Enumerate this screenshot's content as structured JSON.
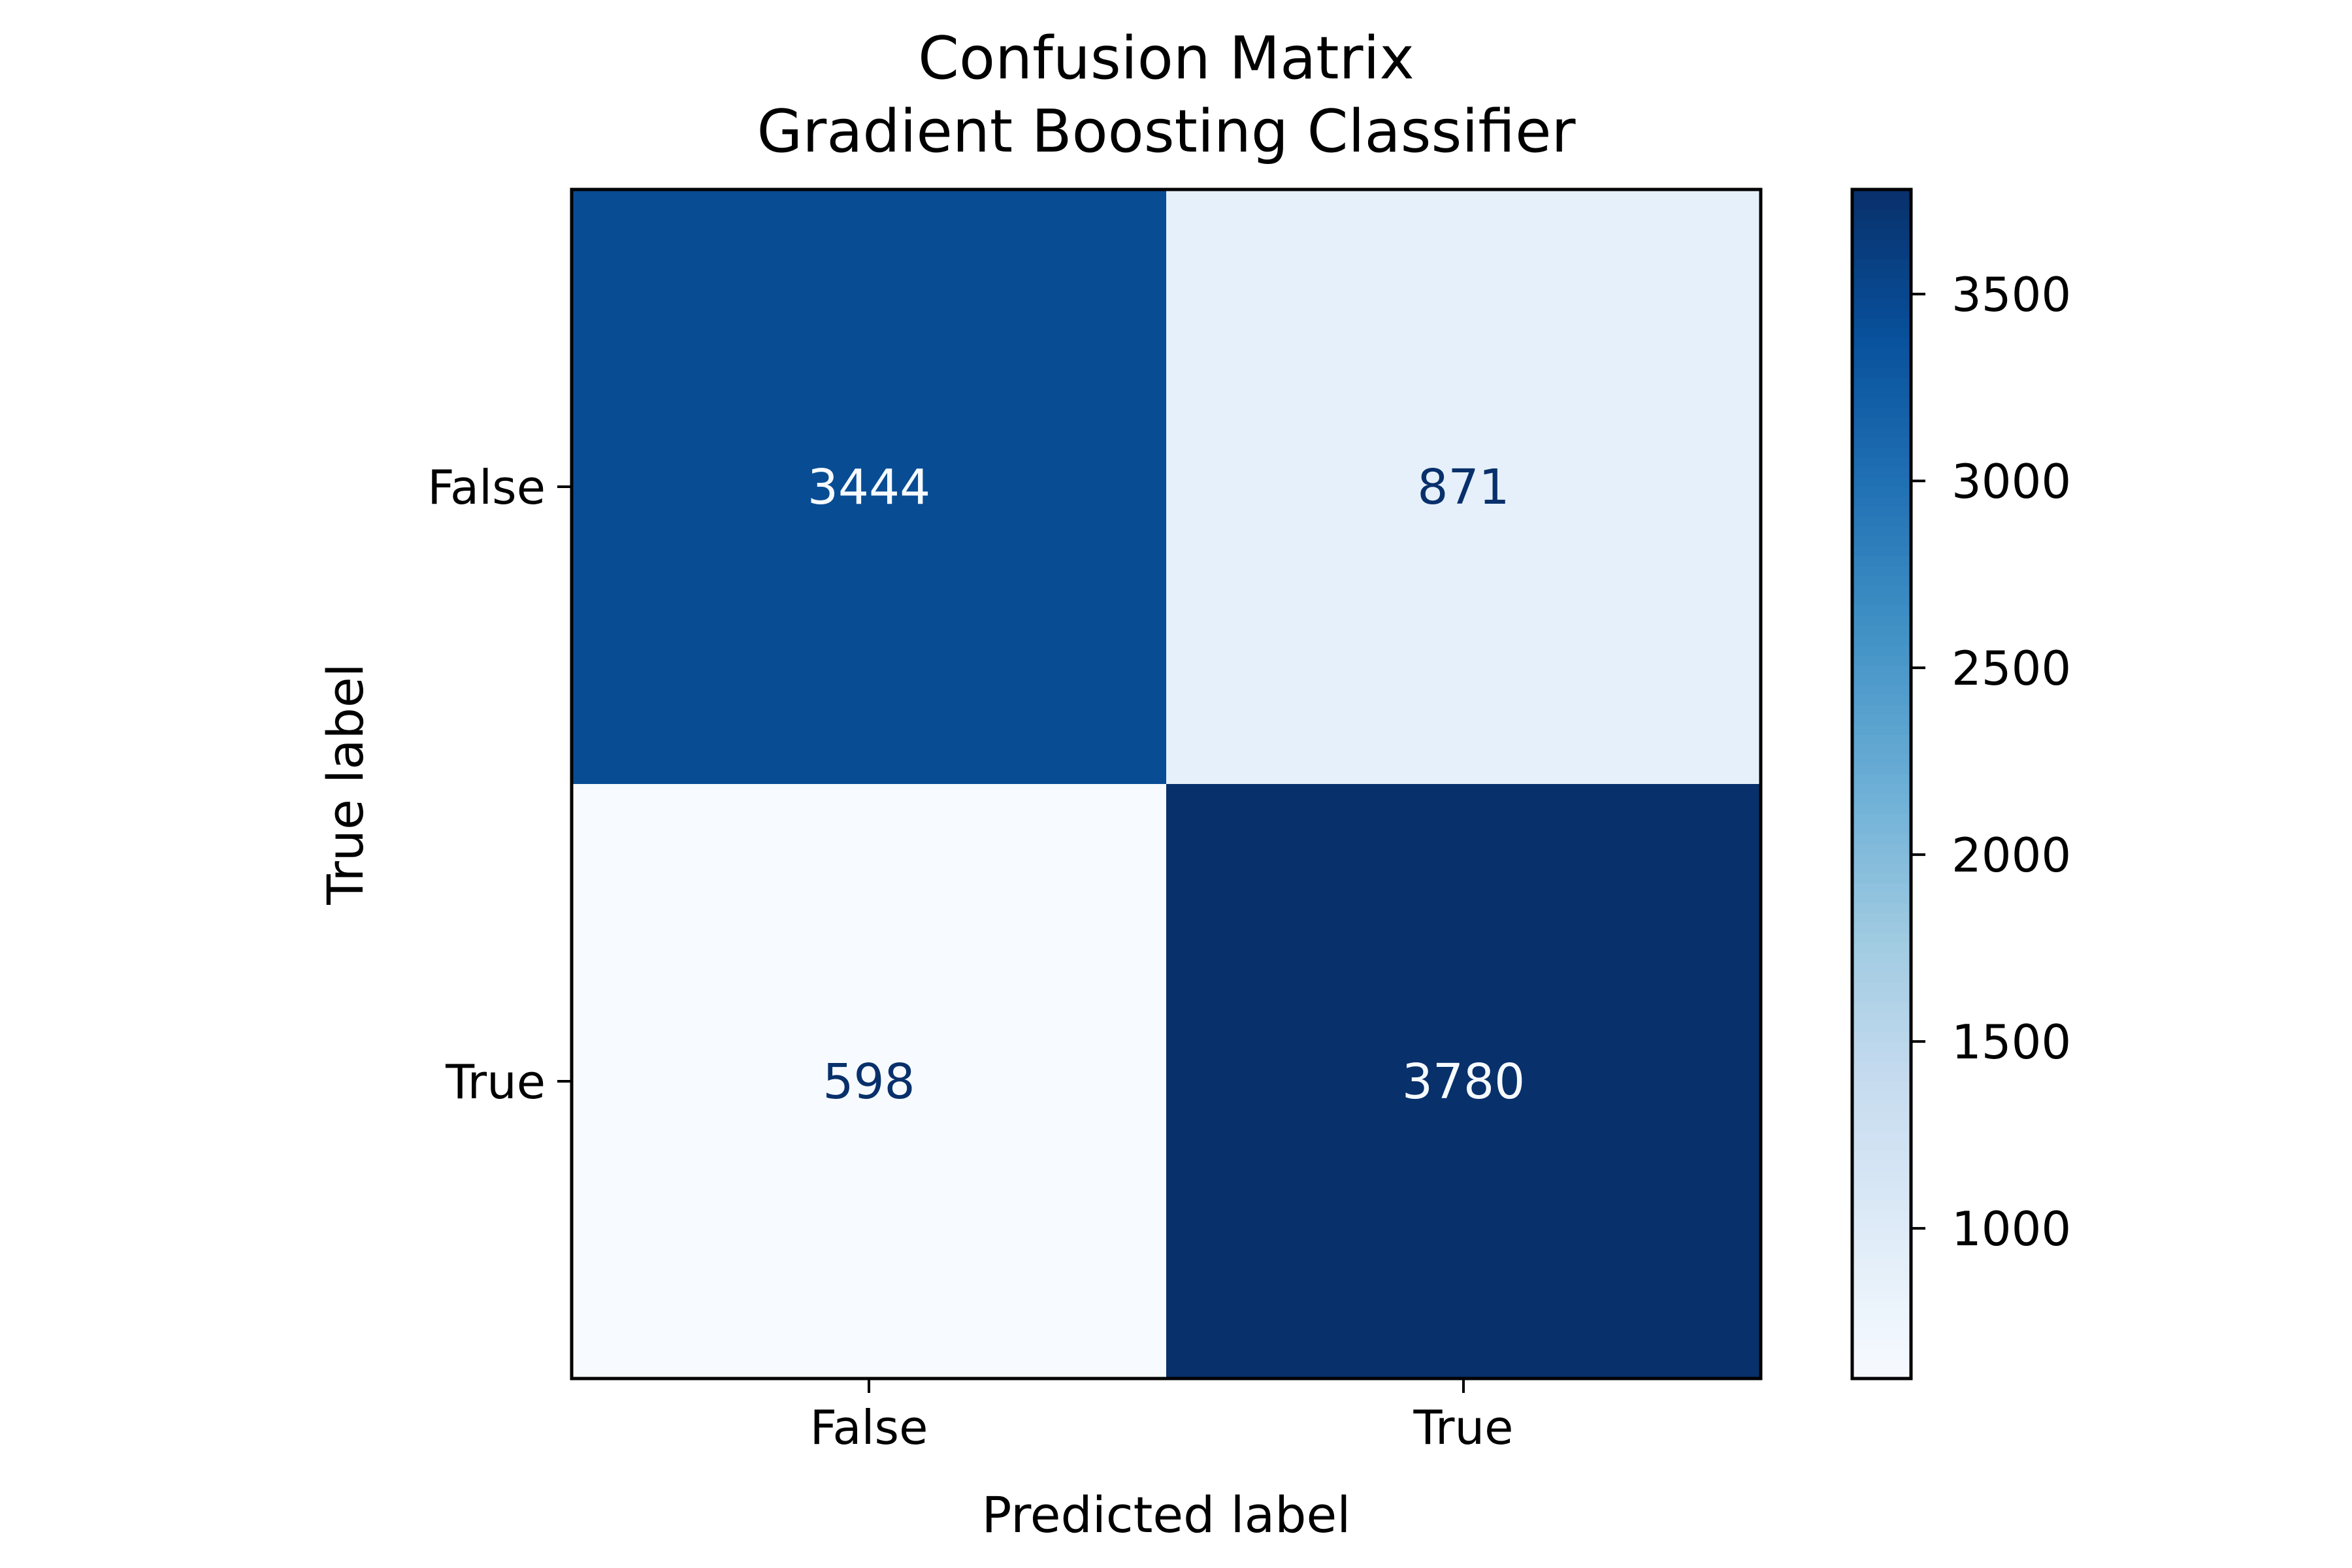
{
  "chart_data": {
    "type": "heatmap",
    "title_lines": [
      "Confusion Matrix",
      "Gradient Boosting Classifier"
    ],
    "xlabel": "Predicted label",
    "ylabel": "True label",
    "x_categories": [
      "False",
      "True"
    ],
    "y_categories": [
      "False",
      "True"
    ],
    "matrix": [
      [
        3444,
        871
      ],
      [
        598,
        3780
      ]
    ],
    "colormap": "Blues",
    "color_range": [
      598,
      3780
    ],
    "colorbar_ticks": [
      1000,
      1500,
      2000,
      2500,
      3000,
      3500
    ],
    "grid": false
  }
}
